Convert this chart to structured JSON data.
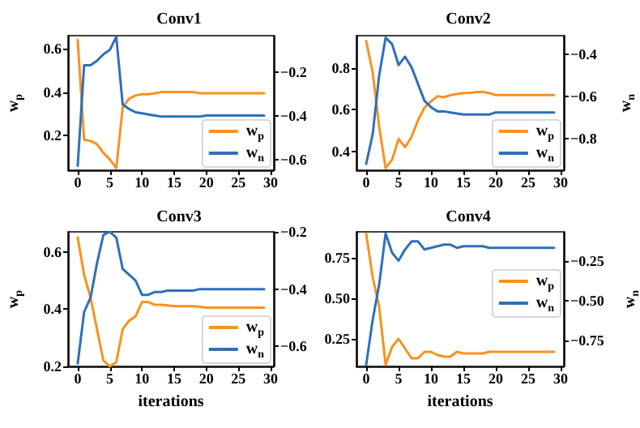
{
  "chart_data": [
    {
      "type": "line",
      "title": "Conv1",
      "ylabel": "w$_{p}$",
      "x": [
        0,
        1,
        2,
        3,
        4,
        5,
        6,
        7,
        8,
        9,
        10,
        11,
        12,
        13,
        14,
        15,
        16,
        17,
        18,
        19,
        20,
        21,
        22,
        23,
        24,
        25,
        26,
        27,
        28,
        29
      ],
      "xlim": [
        -1.5,
        30.5
      ],
      "xticks": [
        0,
        5,
        10,
        15,
        20,
        25,
        30
      ],
      "ylim": [
        0.04,
        0.66
      ],
      "yticks": [
        0.2,
        0.4,
        0.6
      ],
      "y2lim": [
        -0.65,
        -0.035
      ],
      "y2ticks": [
        -0.6,
        -0.4,
        -0.2
      ],
      "legend": "bottom right",
      "grid": false,
      "marker": "none",
      "line_style": "solid",
      "series": [
        {
          "name": "w$_{p}$",
          "color": "#f7921e",
          "axis": "y",
          "values": [
            0.64,
            0.18,
            0.175,
            0.16,
            0.12,
            0.09,
            0.05,
            0.33,
            0.37,
            0.385,
            0.39,
            0.39,
            0.395,
            0.4,
            0.4,
            0.4,
            0.4,
            0.4,
            0.4,
            0.395,
            0.395,
            0.395,
            0.395,
            0.395,
            0.395,
            0.395,
            0.395,
            0.395,
            0.395,
            0.395
          ]
        },
        {
          "name": "w$_{n}$",
          "color": "#2f6fba",
          "axis": "y2",
          "values": [
            -0.63,
            -0.17,
            -0.17,
            -0.15,
            -0.12,
            -0.1,
            -0.04,
            -0.35,
            -0.37,
            -0.385,
            -0.39,
            -0.395,
            -0.4,
            -0.405,
            -0.405,
            -0.405,
            -0.405,
            -0.405,
            -0.405,
            -0.405,
            -0.4,
            -0.4,
            -0.4,
            -0.4,
            -0.4,
            -0.4,
            -0.4,
            -0.4,
            -0.4,
            -0.4
          ]
        }
      ]
    },
    {
      "type": "line",
      "title": "Conv2",
      "y2label": "w$_{n}$",
      "x": [
        0,
        1,
        2,
        3,
        4,
        5,
        6,
        7,
        8,
        9,
        10,
        11,
        12,
        13,
        14,
        15,
        16,
        17,
        18,
        19,
        20,
        21,
        22,
        23,
        24,
        25,
        26,
        27,
        28,
        29
      ],
      "xlim": [
        -1.5,
        30.5
      ],
      "xticks": [
        0,
        5,
        10,
        15,
        20,
        25,
        30
      ],
      "ylim": [
        0.31,
        0.955
      ],
      "yticks": [
        0.4,
        0.6,
        0.8
      ],
      "y2lim": [
        -0.95,
        -0.31
      ],
      "y2ticks": [
        -0.8,
        -0.6,
        -0.4
      ],
      "legend": "bottom right",
      "grid": false,
      "marker": "none",
      "line_style": "solid",
      "series": [
        {
          "name": "w$_{p}$",
          "color": "#f7921e",
          "axis": "y",
          "values": [
            0.93,
            0.78,
            0.52,
            0.32,
            0.36,
            0.46,
            0.42,
            0.47,
            0.55,
            0.61,
            0.64,
            0.665,
            0.66,
            0.67,
            0.675,
            0.68,
            0.68,
            0.685,
            0.685,
            0.68,
            0.67,
            0.67,
            0.67,
            0.67,
            0.67,
            0.67,
            0.67,
            0.67,
            0.67,
            0.67
          ]
        },
        {
          "name": "w$_{n}$",
          "color": "#2f6fba",
          "axis": "y2",
          "values": [
            -0.92,
            -0.78,
            -0.5,
            -0.32,
            -0.35,
            -0.45,
            -0.41,
            -0.46,
            -0.54,
            -0.62,
            -0.65,
            -0.67,
            -0.67,
            -0.675,
            -0.68,
            -0.685,
            -0.685,
            -0.685,
            -0.685,
            -0.685,
            -0.675,
            -0.675,
            -0.675,
            -0.675,
            -0.675,
            -0.675,
            -0.675,
            -0.675,
            -0.675,
            -0.675
          ]
        }
      ]
    },
    {
      "type": "line",
      "title": "Conv3",
      "xlabel": "iterations",
      "ylabel": "w$_{p}$",
      "x": [
        0,
        1,
        2,
        3,
        4,
        5,
        6,
        7,
        8,
        9,
        10,
        11,
        12,
        13,
        14,
        15,
        16,
        17,
        18,
        19,
        20,
        21,
        22,
        23,
        24,
        25,
        26,
        27,
        28,
        29
      ],
      "xlim": [
        -1.5,
        30.5
      ],
      "xticks": [
        0,
        5,
        10,
        15,
        20,
        25,
        30
      ],
      "ylim": [
        0.2,
        0.67
      ],
      "yticks": [
        0.2,
        0.4,
        0.6
      ],
      "y2lim": [
        -0.67,
        -0.2
      ],
      "y2ticks": [
        -0.6,
        -0.4,
        -0.2
      ],
      "legend": "bottom right",
      "grid": false,
      "marker": "none",
      "line_style": "solid",
      "series": [
        {
          "name": "w$_{p}$",
          "color": "#f7921e",
          "axis": "y",
          "values": [
            0.65,
            0.52,
            0.44,
            0.33,
            0.22,
            0.2,
            0.215,
            0.33,
            0.36,
            0.375,
            0.425,
            0.425,
            0.415,
            0.415,
            0.413,
            0.41,
            0.41,
            0.41,
            0.41,
            0.408,
            0.405,
            0.405,
            0.405,
            0.405,
            0.405,
            0.405,
            0.405,
            0.405,
            0.405,
            0.405
          ]
        },
        {
          "name": "w$_{n}$",
          "color": "#2f6fba",
          "axis": "y2",
          "values": [
            -0.66,
            -0.48,
            -0.43,
            -0.31,
            -0.21,
            -0.2,
            -0.22,
            -0.33,
            -0.35,
            -0.37,
            -0.42,
            -0.42,
            -0.41,
            -0.41,
            -0.405,
            -0.405,
            -0.405,
            -0.405,
            -0.405,
            -0.4,
            -0.4,
            -0.4,
            -0.4,
            -0.4,
            -0.4,
            -0.4,
            -0.4,
            -0.4,
            -0.4,
            -0.4
          ]
        }
      ]
    },
    {
      "type": "line",
      "title": "Conv4",
      "xlabel": "iterations",
      "y2label": "w$_{n}$",
      "x": [
        0,
        1,
        2,
        3,
        4,
        5,
        6,
        7,
        8,
        9,
        10,
        11,
        12,
        13,
        14,
        15,
        16,
        17,
        18,
        19,
        20,
        21,
        22,
        23,
        24,
        25,
        26,
        27,
        28,
        29
      ],
      "xlim": [
        -1.5,
        30.5
      ],
      "xticks": [
        0,
        5,
        10,
        15,
        20,
        25,
        30
      ],
      "ylim": [
        0.08,
        0.91
      ],
      "yticks": [
        {
          "value": 0.25,
          "label": "0.25"
        },
        {
          "value": 0.5,
          "label": "0.50"
        },
        {
          "value": 0.75,
          "label": "0.75"
        }
      ],
      "y2lim": [
        -0.91,
        -0.07
      ],
      "y2ticks": [
        {
          "value": -0.75,
          "label": "−0.75"
        },
        {
          "value": -0.5,
          "label": "−0.50"
        },
        {
          "value": -0.25,
          "label": "−0.25"
        }
      ],
      "legend": "right",
      "grid": false,
      "marker": "none",
      "line_style": "solid",
      "series": [
        {
          "name": "w$_{p}$",
          "color": "#f7921e",
          "axis": "y",
          "values": [
            0.9,
            0.63,
            0.45,
            0.09,
            0.2,
            0.25,
            0.19,
            0.13,
            0.13,
            0.17,
            0.17,
            0.15,
            0.14,
            0.14,
            0.17,
            0.16,
            0.16,
            0.16,
            0.16,
            0.17,
            0.17,
            0.17,
            0.17,
            0.17,
            0.17,
            0.17,
            0.17,
            0.17,
            0.17,
            0.17
          ]
        },
        {
          "name": "w$_{n}$",
          "color": "#2f6fba",
          "axis": "y2",
          "values": [
            -0.9,
            -0.62,
            -0.4,
            -0.08,
            -0.2,
            -0.25,
            -0.18,
            -0.13,
            -0.13,
            -0.18,
            -0.17,
            -0.16,
            -0.15,
            -0.15,
            -0.17,
            -0.16,
            -0.16,
            -0.16,
            -0.16,
            -0.17,
            -0.17,
            -0.17,
            -0.17,
            -0.17,
            -0.17,
            -0.17,
            -0.17,
            -0.17,
            -0.17,
            -0.17
          ]
        }
      ]
    }
  ]
}
